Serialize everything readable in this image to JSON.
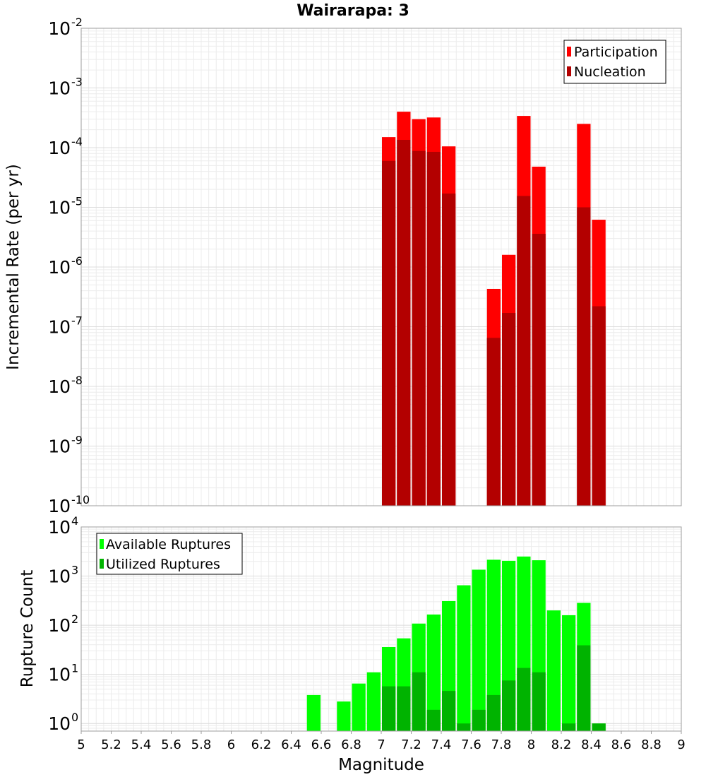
{
  "chart_data": [
    {
      "type": "bar",
      "title": "Wairarapa: 3",
      "xlabel": "",
      "ylabel": "Incremental Rate (per yr)",
      "yscale": "log",
      "xlim": [
        5,
        9
      ],
      "ylim": [
        1e-10,
        0.01
      ],
      "grid": true,
      "legend_position": "top-right",
      "yticks": [
        {
          "base": "10",
          "exp": "-10",
          "value": 1e-10
        },
        {
          "base": "10",
          "exp": "-9",
          "value": 1e-09
        },
        {
          "base": "10",
          "exp": "-8",
          "value": 1e-08
        },
        {
          "base": "10",
          "exp": "-7",
          "value": 1e-07
        },
        {
          "base": "10",
          "exp": "-6",
          "value": 1e-06
        },
        {
          "base": "10",
          "exp": "-5",
          "value": 1e-05
        },
        {
          "base": "10",
          "exp": "-4",
          "value": 0.0001
        },
        {
          "base": "10",
          "exp": "-3",
          "value": 0.001
        },
        {
          "base": "10",
          "exp": "-2",
          "value": 0.01
        }
      ],
      "bar_width": 0.1,
      "series": [
        {
          "name": "Participation",
          "color": "#ff0000",
          "points": [
            {
              "x": 7.05,
              "y": 0.00015
            },
            {
              "x": 7.15,
              "y": 0.0004
            },
            {
              "x": 7.25,
              "y": 0.0003
            },
            {
              "x": 7.35,
              "y": 0.00032
            },
            {
              "x": 7.45,
              "y": 0.000105
            },
            {
              "x": 7.75,
              "y": 4.3e-07
            },
            {
              "x": 7.85,
              "y": 1.6e-06
            },
            {
              "x": 7.95,
              "y": 0.00034
            },
            {
              "x": 8.05,
              "y": 4.8e-05
            },
            {
              "x": 8.35,
              "y": 0.00025
            },
            {
              "x": 8.45,
              "y": 6.2e-06
            }
          ]
        },
        {
          "name": "Nucleation",
          "color": "#b30000",
          "points": [
            {
              "x": 7.05,
              "y": 6e-05
            },
            {
              "x": 7.15,
              "y": 0.000135
            },
            {
              "x": 7.25,
              "y": 8.8e-05
            },
            {
              "x": 7.35,
              "y": 8.5e-05
            },
            {
              "x": 7.45,
              "y": 1.7e-05
            },
            {
              "x": 7.75,
              "y": 6.5e-08
            },
            {
              "x": 7.85,
              "y": 1.7e-07
            },
            {
              "x": 7.95,
              "y": 1.55e-05
            },
            {
              "x": 8.05,
              "y": 3.6e-06
            },
            {
              "x": 8.35,
              "y": 1e-05
            },
            {
              "x": 8.45,
              "y": 2.2e-07
            }
          ]
        }
      ]
    },
    {
      "type": "bar",
      "title": "",
      "xlabel": "Magnitude",
      "ylabel": "Rupture Count",
      "yscale": "log",
      "xlim": [
        5,
        9
      ],
      "ylim": [
        0.7,
        10000
      ],
      "grid": true,
      "legend_position": "top-left",
      "xticks": [
        "5",
        "5.2",
        "5.4",
        "5.6",
        "5.8",
        "6",
        "6.2",
        "6.4",
        "6.6",
        "6.8",
        "7",
        "7.2",
        "7.4",
        "7.6",
        "7.8",
        "8",
        "8.2",
        "8.4",
        "8.6",
        "8.8",
        "9"
      ],
      "yticks": [
        {
          "base": "10",
          "exp": "0",
          "value": 1
        },
        {
          "base": "10",
          "exp": "1",
          "value": 10
        },
        {
          "base": "10",
          "exp": "2",
          "value": 100
        },
        {
          "base": "10",
          "exp": "3",
          "value": 1000
        },
        {
          "base": "10",
          "exp": "4",
          "value": 10000
        }
      ],
      "bar_width": 0.1,
      "series": [
        {
          "name": "Available Ruptures",
          "color": "#00ff00",
          "points": [
            {
              "x": 6.55,
              "y": 3.8
            },
            {
              "x": 6.75,
              "y": 2.8
            },
            {
              "x": 6.85,
              "y": 6.5
            },
            {
              "x": 6.95,
              "y": 11
            },
            {
              "x": 7.05,
              "y": 36
            },
            {
              "x": 7.15,
              "y": 54
            },
            {
              "x": 7.25,
              "y": 108
            },
            {
              "x": 7.35,
              "y": 165
            },
            {
              "x": 7.45,
              "y": 310
            },
            {
              "x": 7.55,
              "y": 650
            },
            {
              "x": 7.65,
              "y": 1350
            },
            {
              "x": 7.75,
              "y": 2150
            },
            {
              "x": 7.85,
              "y": 2050
            },
            {
              "x": 7.95,
              "y": 2500
            },
            {
              "x": 8.05,
              "y": 2100
            },
            {
              "x": 8.15,
              "y": 200
            },
            {
              "x": 8.25,
              "y": 160
            },
            {
              "x": 8.35,
              "y": 285
            },
            {
              "x": 8.45,
              "y": 1
            }
          ]
        },
        {
          "name": "Utilized Ruptures",
          "color": "#00b300",
          "points": [
            {
              "x": 7.05,
              "y": 5.7
            },
            {
              "x": 7.15,
              "y": 5.7
            },
            {
              "x": 7.25,
              "y": 11
            },
            {
              "x": 7.35,
              "y": 1.9
            },
            {
              "x": 7.45,
              "y": 4.6
            },
            {
              "x": 7.55,
              "y": 1
            },
            {
              "x": 7.65,
              "y": 1.9
            },
            {
              "x": 7.75,
              "y": 3.8
            },
            {
              "x": 7.85,
              "y": 7.5
            },
            {
              "x": 7.95,
              "y": 13.5
            },
            {
              "x": 8.05,
              "y": 11
            },
            {
              "x": 8.25,
              "y": 1
            },
            {
              "x": 8.35,
              "y": 39
            },
            {
              "x": 8.45,
              "y": 1
            }
          ]
        }
      ]
    }
  ]
}
